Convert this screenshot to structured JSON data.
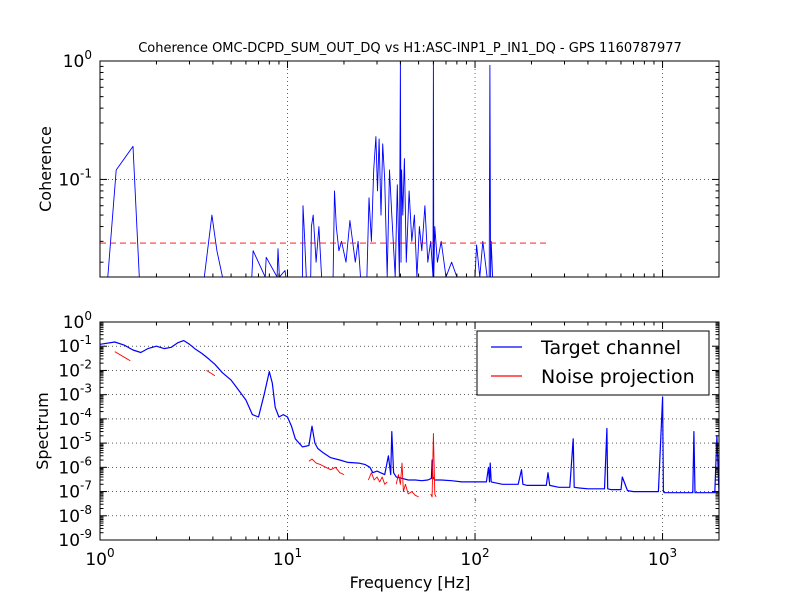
{
  "chart_data": [
    {
      "type": "line",
      "title": "Coherence OMC-DCPD_SUM_OUT_DQ vs H1:ASC-INP1_P_IN1_DQ - GPS 1160787977",
      "ylabel": "Coherence",
      "xscale": "log",
      "yscale": "log",
      "xlim": [
        1,
        2000
      ],
      "ylim": [
        0.015,
        1
      ],
      "yticks": [
        {
          "base": "10",
          "exp": "-1",
          "value": 0.1
        },
        {
          "base": "10",
          "exp": "0",
          "value": 1
        }
      ],
      "grid": true,
      "series": [
        {
          "color": "#0000ff",
          "style": "solid",
          "x": [
            1.1,
            1.22,
            1.5,
            1.62,
            3.6,
            3.8,
            3.95,
            4.2,
            4.5,
            6.45,
            6.55,
            7.6,
            7.7,
            8.8,
            8.9,
            9.05,
            9.7,
            9.8,
            12.0,
            12.1,
            12.3,
            12.6,
            13.3,
            13.4,
            13.7,
            14.2,
            14.7,
            15.2,
            17.5,
            17.8,
            18.2,
            18.8,
            19.4,
            20.5,
            21.5,
            23.0,
            23.8,
            24.5,
            26.5,
            27.2,
            28.0,
            28.8,
            29.6,
            30.2,
            30.8,
            31.5,
            32.2,
            33.0,
            34.0,
            35.0,
            36.0,
            37.5,
            38.5,
            39.5,
            40.0,
            40.3,
            40.6,
            41.2,
            42.0,
            43.0,
            44.5,
            46.0,
            47.5,
            49.0,
            50.5,
            52.0,
            54.0,
            56.0,
            58.0,
            59.7,
            60.0,
            60.3,
            61.0,
            63.0,
            66.0,
            70.0,
            75.0,
            80.0,
            90.0,
            100.0,
            102.0,
            106.0,
            110.0,
            116.0,
            119.0,
            120.0,
            121.0,
            122.0,
            124.0
          ],
          "y": [
            0.015,
            0.12,
            0.19,
            0.015,
            0.015,
            0.03,
            0.05,
            0.025,
            0.015,
            0.015,
            0.025,
            0.015,
            0.022,
            0.015,
            0.026,
            0.015,
            0.017,
            0.015,
            0.015,
            0.06,
            0.035,
            0.015,
            0.015,
            0.04,
            0.05,
            0.02,
            0.04,
            0.015,
            0.015,
            0.08,
            0.04,
            0.025,
            0.03,
            0.02,
            0.045,
            0.02,
            0.03,
            0.015,
            0.015,
            0.07,
            0.03,
            0.12,
            0.23,
            0.08,
            0.22,
            0.05,
            0.2,
            0.1,
            0.015,
            0.12,
            0.05,
            0.015,
            0.09,
            0.015,
            1.0,
            0.02,
            0.12,
            0.05,
            0.15,
            0.02,
            0.08,
            0.03,
            0.05,
            0.015,
            0.04,
            0.025,
            0.06,
            0.02,
            0.03,
            0.015,
            1.0,
            0.015,
            0.04,
            0.02,
            0.03,
            0.015,
            0.02,
            0.015,
            0.015,
            0.015,
            0.028,
            0.015,
            0.03,
            0.015,
            0.015,
            0.92,
            0.015,
            0.03,
            0.015
          ]
        },
        {
          "color": "#ff0000",
          "style": "dashed",
          "x": [
            1,
            250
          ],
          "y": [
            0.029,
            0.029
          ]
        }
      ]
    },
    {
      "type": "line",
      "xlabel": "Frequency [Hz]",
      "ylabel": "Spectrum",
      "xscale": "log",
      "yscale": "log",
      "xlim": [
        1,
        2000
      ],
      "ylim": [
        1e-09,
        1
      ],
      "xticks": [
        {
          "base": "10",
          "exp": "0",
          "value": 1
        },
        {
          "base": "10",
          "exp": "1",
          "value": 10
        },
        {
          "base": "10",
          "exp": "2",
          "value": 100
        },
        {
          "base": "10",
          "exp": "3",
          "value": 1000
        }
      ],
      "yticks": [
        {
          "base": "10",
          "exp": "-9",
          "value": 1e-09
        },
        {
          "base": "10",
          "exp": "-8",
          "value": 1e-08
        },
        {
          "base": "10",
          "exp": "-7",
          "value": 1e-07
        },
        {
          "base": "10",
          "exp": "-6",
          "value": 1e-06
        },
        {
          "base": "10",
          "exp": "-5",
          "value": 1e-05
        },
        {
          "base": "10",
          "exp": "-4",
          "value": 0.0001
        },
        {
          "base": "10",
          "exp": "-3",
          "value": 0.001
        },
        {
          "base": "10",
          "exp": "-2",
          "value": 0.01
        },
        {
          "base": "10",
          "exp": "-1",
          "value": 0.1
        },
        {
          "base": "10",
          "exp": "0",
          "value": 1
        }
      ],
      "grid": true,
      "legend": {
        "position": "top-right",
        "entries": [
          "Target channel",
          "Noise projection"
        ]
      },
      "series": [
        {
          "name": "Target channel",
          "color": "#0000ff",
          "style": "solid",
          "x": [
            1.0,
            1.2,
            1.35,
            1.5,
            1.65,
            1.8,
            2.0,
            2.2,
            2.4,
            2.6,
            2.8,
            3.0,
            3.2,
            3.5,
            3.8,
            4.1,
            4.5,
            5.0,
            5.5,
            6.0,
            6.5,
            7.0,
            7.5,
            8.0,
            8.3,
            8.6,
            9.0,
            9.5,
            10.0,
            10.5,
            11.0,
            12.0,
            13.0,
            13.5,
            14.0,
            14.5,
            15.5,
            17.0,
            19.0,
            21.0,
            24.0,
            26.0,
            27.5,
            28.5,
            30.0,
            33.0,
            34.5,
            35.5,
            36.0,
            36.8,
            38.0,
            41.0,
            44.0,
            48.0,
            52.0,
            56.0,
            58.5,
            59.0,
            59.5,
            61.0,
            66.0,
            75.0,
            85.0,
            100.0,
            115.0,
            118.0,
            119.5,
            120.5,
            122.0,
            140.0,
            170.0,
            177.0,
            180.0,
            190.0,
            220.0,
            240.0,
            245.0,
            250.0,
            280.0,
            320.0,
            334.0,
            338.0,
            360.0,
            400.0,
            450.0,
            490.0,
            505.0,
            510.0,
            530.0,
            600.0,
            610.0,
            650.0,
            700.0,
            800.0,
            900.0,
            950.0,
            1000.0,
            1010.0,
            1020.0,
            1100.0,
            1300.0,
            1450.0,
            1470.0,
            1490.0,
            1550.0,
            1700.0,
            1900.0,
            1950.0,
            2000.0
          ],
          "y": [
            0.12,
            0.15,
            0.11,
            0.07,
            0.055,
            0.08,
            0.1,
            0.08,
            0.09,
            0.14,
            0.17,
            0.12,
            0.08,
            0.05,
            0.03,
            0.018,
            0.008,
            0.004,
            0.0015,
            0.0006,
            0.00015,
            0.00012,
            0.001,
            0.009,
            0.003,
            0.0003,
            0.00012,
            0.00015,
            0.00012,
            5e-05,
            1.5e-05,
            7e-06,
            8e-06,
            5e-05,
            1e-05,
            6e-06,
            4e-06,
            2.5e-06,
            2e-06,
            1.6e-06,
            1.5e-06,
            1.3e-06,
            1e-06,
            6e-07,
            7e-07,
            5e-07,
            3e-06,
            5e-07,
            3e-05,
            6e-07,
            4e-07,
            3.5e-07,
            3e-07,
            3e-07,
            2.8e-07,
            3e-07,
            3.5e-07,
            2e-06,
            4e-07,
            3e-07,
            3e-07,
            2.8e-07,
            2.5e-07,
            2.5e-07,
            2.5e-07,
            1e-06,
            2.5e-07,
            1.5e-06,
            2.5e-07,
            2e-07,
            2e-07,
            8e-07,
            2e-07,
            1.8e-07,
            1.8e-07,
            1.8e-07,
            6e-07,
            1.8e-07,
            1.5e-07,
            1.5e-07,
            1.5e-05,
            1.5e-07,
            1.4e-07,
            1.3e-07,
            1.3e-07,
            1.3e-07,
            4e-05,
            1.3e-07,
            1.2e-07,
            1.2e-07,
            4e-07,
            1.1e-07,
            1e-07,
            1e-07,
            1e-07,
            1e-07,
            0.0008,
            1e-07,
            9e-08,
            9e-08,
            9e-08,
            9e-08,
            3e-05,
            9e-08,
            9e-08,
            9e-08,
            9e-08,
            2e-05,
            9e-08
          ]
        },
        {
          "name": "Noise projection",
          "color": "#ff0000",
          "style": "solid",
          "segments": [
            {
              "x": [
                1.2,
                1.45
              ],
              "y": [
                0.06,
                0.025
              ]
            },
            {
              "x": [
                3.7,
                4.1
              ],
              "y": [
                0.01,
                0.006
              ]
            },
            {
              "x": [
                13.0,
                13.5,
                14.2,
                15.0,
                16.0,
                17.0,
                18.0,
                19.0,
                20.0
              ],
              "y": [
                1.8e-06,
                2.2e-06,
                1.5e-06,
                1.3e-06,
                1e-06,
                8e-07,
                1e-06,
                6e-07,
                5e-07
              ]
            },
            {
              "x": [
                27.0,
                28.0,
                29.0,
                30.0,
                31.0,
                32.0,
                33.0,
                34.0
              ],
              "y": [
                3e-07,
                6e-07,
                3e-07,
                4e-07,
                2.5e-07,
                4e-07,
                2e-07,
                2.5e-07
              ]
            },
            {
              "x": [
                38.0,
                39.0,
                40.0,
                40.8,
                41.5,
                42.5,
                44.0,
                46.0,
                48.0,
                50.0
              ],
              "y": [
                2e-07,
                5e-07,
                2e-07,
                1.5e-06,
                1e-07,
                2e-07,
                8e-08,
                1e-07,
                7e-08,
                6e-08
              ]
            },
            {
              "x": [
                58.0,
                59.0,
                60.0,
                61.0,
                62.0
              ],
              "y": [
                8e-08,
                6e-08,
                2.5e-05,
                8e-08,
                6e-08
              ]
            },
            {
              "x": [
                100.0,
                101.0
              ],
              "y": [
                5e-08,
                4e-08
              ]
            }
          ]
        }
      ]
    }
  ]
}
